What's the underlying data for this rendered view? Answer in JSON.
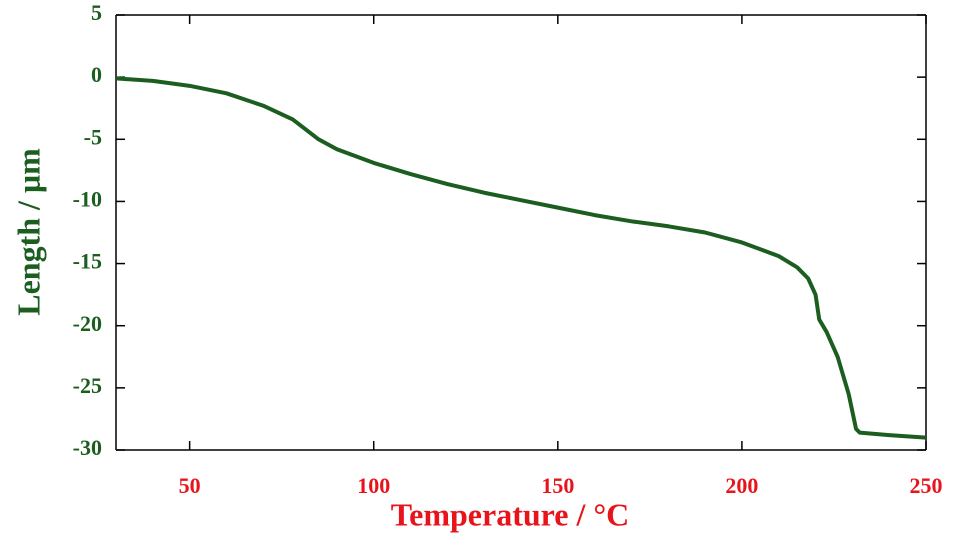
{
  "chart_data": {
    "type": "line",
    "xlabel": "Temperature / °C",
    "ylabel": "Length / μm",
    "x": [
      30,
      40,
      50,
      60,
      70,
      78,
      85,
      90,
      100,
      110,
      120,
      130,
      140,
      150,
      160,
      170,
      180,
      190,
      200,
      210,
      215,
      218,
      220,
      221,
      223,
      226,
      229,
      231,
      232,
      240,
      250
    ],
    "series": [
      {
        "name": "Length",
        "color": "#1b5e20",
        "values": [
          -0.1,
          -0.3,
          -0.7,
          -1.3,
          -2.3,
          -3.4,
          -5.0,
          -5.8,
          -6.9,
          -7.8,
          -8.6,
          -9.3,
          -9.9,
          -10.5,
          -11.1,
          -11.6,
          -12.0,
          -12.5,
          -13.3,
          -14.4,
          -15.3,
          -16.2,
          -17.5,
          -19.5,
          -20.5,
          -22.5,
          -25.5,
          -28.3,
          -28.6,
          -28.8,
          -29.0
        ]
      }
    ],
    "xlim": [
      30,
      250
    ],
    "xticks": [
      50,
      100,
      150,
      200,
      250
    ],
    "ylim": [
      -30,
      5
    ],
    "yticks": [
      -30,
      -25,
      -20,
      -15,
      -10,
      -5,
      0,
      5
    ]
  }
}
